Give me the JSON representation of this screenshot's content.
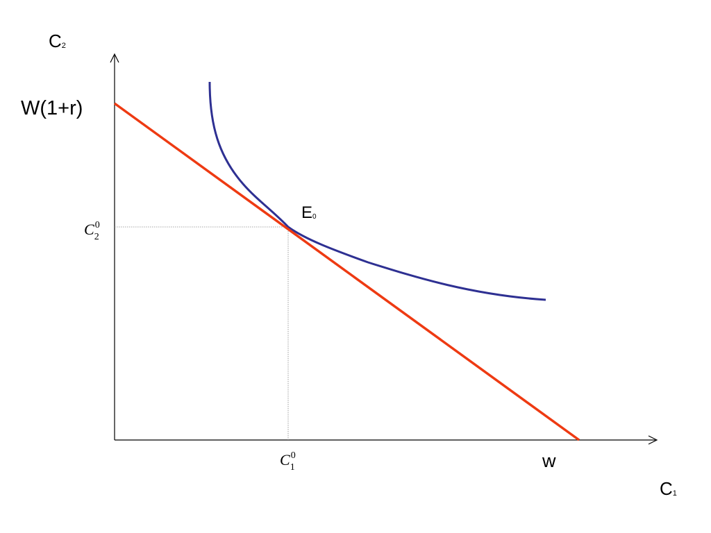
{
  "diagram": {
    "y_axis_label": {
      "main": "C",
      "sub": "2"
    },
    "x_axis_label": {
      "main": "C",
      "sub": "1"
    },
    "y_intercept_label": "W(1+r)",
    "x_intercept_label": "w",
    "equilibrium_label": {
      "main": "E",
      "sub": "0"
    },
    "c2_tick_label": {
      "main": "C",
      "sub": "2",
      "sup": "0"
    },
    "c1_tick_label": {
      "main": "C",
      "sub": "1",
      "sup": "0"
    },
    "colors": {
      "axes": "#000000",
      "budget_line": "#ee3a12",
      "indifference_curve": "#2e3092",
      "guide_lines": "#888888"
    }
  }
}
